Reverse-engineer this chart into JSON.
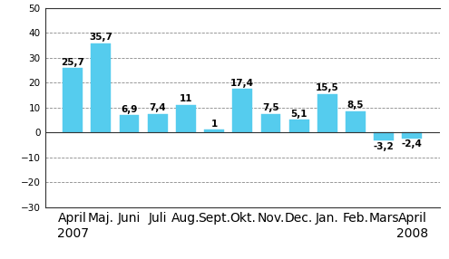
{
  "categories": [
    "April\n2007",
    "Maj.",
    "Juni",
    "Juli",
    "Aug.",
    "Sept.",
    "Okt.",
    "Nov.",
    "Dec.",
    "Jan.",
    "Feb.",
    "Mars",
    "April\n2008"
  ],
  "values": [
    25.7,
    35.7,
    6.9,
    7.4,
    11.0,
    1.0,
    17.4,
    7.5,
    5.1,
    15.5,
    8.5,
    -3.2,
    -2.4
  ],
  "bar_color": "#55CCEE",
  "bar_edge_color": "#55CCEE",
  "ylim": [
    -30,
    50
  ],
  "yticks": [
    -30,
    -20,
    -10,
    0,
    10,
    20,
    30,
    40,
    50
  ],
  "grid_color": "#888888",
  "background_color": "#ffffff",
  "label_fontsize": 7.5,
  "tick_fontsize": 7.5,
  "border_color": "#333333"
}
